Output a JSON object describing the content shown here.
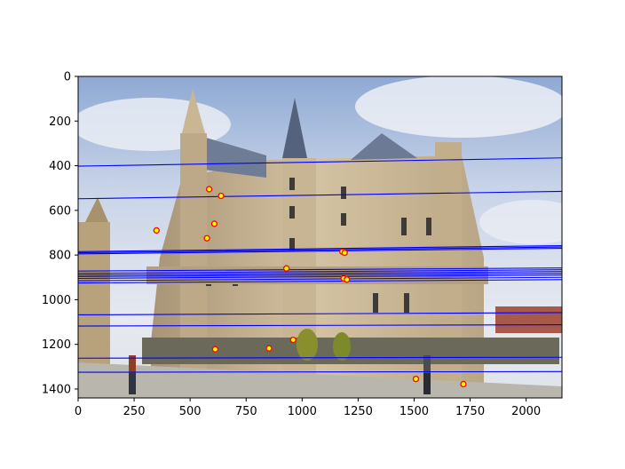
{
  "chart_data": {
    "type": "scatter",
    "title": "",
    "xlabel": "",
    "ylabel": "",
    "xlim": [
      0,
      2160
    ],
    "ylim": [
      1440,
      0
    ],
    "y_inverted": true,
    "grid": false,
    "legend": "none",
    "background": "photograph: Palacio Episcopal de Astorga (Gaudí) under a cloudy sky, with two pedestrians walking in front",
    "x_ticks": [
      "0",
      "250",
      "500",
      "750",
      "1000",
      "1250",
      "1500",
      "1750",
      "2000"
    ],
    "y_ticks": [
      "0",
      "200",
      "400",
      "600",
      "800",
      "1000",
      "1200",
      "1400"
    ],
    "colors": {
      "lines": "#0000ff",
      "marker_edge": "#ff0000",
      "marker_face": "#ffff00",
      "axes": "#000000"
    },
    "epipolar_lines": [
      {
        "y_left": 402,
        "y_right": 365
      },
      {
        "y_left": 548,
        "y_right": 515
      },
      {
        "y_left": 785,
        "y_right": 758
      },
      {
        "y_left": 790,
        "y_right": 764
      },
      {
        "y_left": 795,
        "y_right": 770
      },
      {
        "y_left": 872,
        "y_right": 858
      },
      {
        "y_left": 882,
        "y_right": 866
      },
      {
        "y_left": 890,
        "y_right": 874
      },
      {
        "y_left": 897,
        "y_right": 882
      },
      {
        "y_left": 905,
        "y_right": 890
      },
      {
        "y_left": 915,
        "y_right": 900
      },
      {
        "y_left": 925,
        "y_right": 910
      },
      {
        "y_left": 1068,
        "y_right": 1058
      },
      {
        "y_left": 1118,
        "y_right": 1112
      },
      {
        "y_left": 1262,
        "y_right": 1258
      },
      {
        "y_left": 1325,
        "y_right": 1322
      }
    ],
    "points": [
      {
        "x": 350,
        "y": 690
      },
      {
        "x": 585,
        "y": 505
      },
      {
        "x": 638,
        "y": 535
      },
      {
        "x": 608,
        "y": 660
      },
      {
        "x": 575,
        "y": 725
      },
      {
        "x": 1180,
        "y": 785
      },
      {
        "x": 1190,
        "y": 790
      },
      {
        "x": 1185,
        "y": 905
      },
      {
        "x": 1200,
        "y": 910
      },
      {
        "x": 930,
        "y": 860
      },
      {
        "x": 960,
        "y": 1180
      },
      {
        "x": 612,
        "y": 1222
      },
      {
        "x": 852,
        "y": 1218
      },
      {
        "x": 1508,
        "y": 1355
      },
      {
        "x": 1720,
        "y": 1378
      }
    ]
  }
}
